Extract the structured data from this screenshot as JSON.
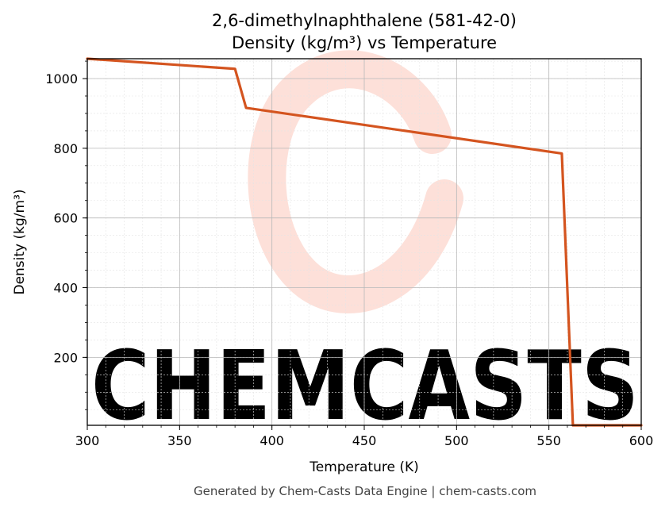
{
  "chart_data": {
    "type": "line",
    "title_line1": "2,6-dimethylnaphthalene (581-42-0)",
    "title_line2": "Density (kg/m³) vs Temperature",
    "xlabel": "Temperature (K)",
    "ylabel": "Density (kg/m³)",
    "xlim": [
      300,
      600
    ],
    "ylim": [
      5,
      1057
    ],
    "x_ticks": [
      300,
      350,
      400,
      450,
      500,
      550,
      600
    ],
    "y_ticks": [
      200,
      400,
      600,
      800,
      1000
    ],
    "grid": true,
    "series": [
      {
        "color": "#d4541f",
        "points": [
          [
            300,
            1057
          ],
          [
            380,
            1028
          ],
          [
            386,
            916
          ],
          [
            557,
            785
          ],
          [
            563,
            5
          ],
          [
            600,
            5
          ]
        ]
      }
    ]
  },
  "watermark": {
    "text": "CHEMCASTS",
    "color": "#fde0d9"
  },
  "footer": "Generated by Chem-Casts Data Engine | chem-casts.com"
}
